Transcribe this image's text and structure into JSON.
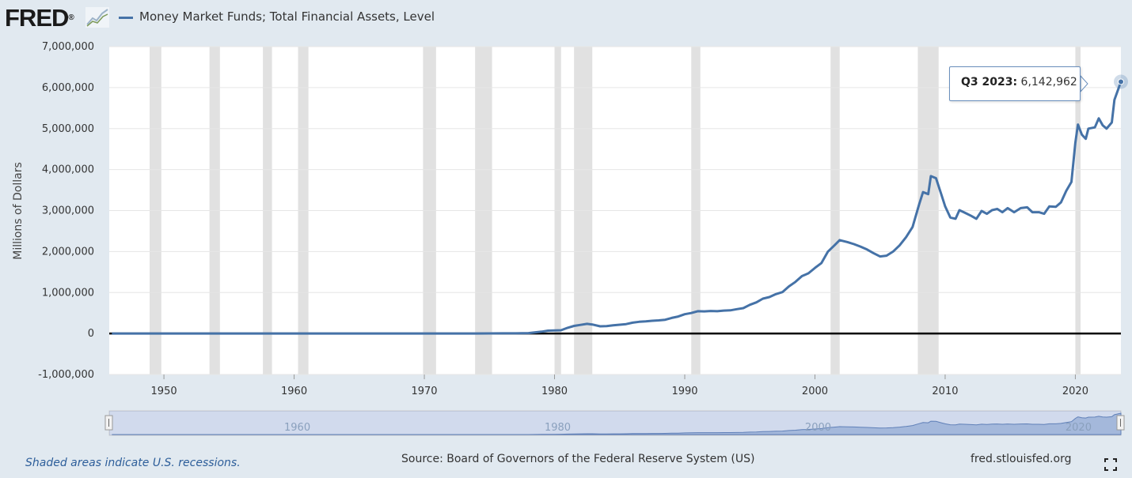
{
  "header": {
    "logo_text": "FRED",
    "logo_registered": "®",
    "legend_label": "Money Market Funds; Total Financial Assets, Level"
  },
  "colors": {
    "page_bg": "#e1e9f0",
    "plot_bg": "#ffffff",
    "series": "#4572a7",
    "recession": "#e1e1e1",
    "zero_line": "#000000",
    "navigator_fill": "#b8c9e3",
    "navigator_line": "#5d7fb3",
    "footer_note": "#2d5e9a"
  },
  "tooltip": {
    "label": "Q3 2023:",
    "value": "6,142,962"
  },
  "navigator": {
    "tick_labels": [
      "1960",
      "1980",
      "2000",
      "2020"
    ]
  },
  "footer": {
    "note": "Shaded areas indicate U.S. recessions.",
    "source": "Source: Board of Governors of the Federal Reserve System (US)",
    "site": "fred.stlouisfed.org"
  },
  "icons": {
    "logo_mark": "line-chart-icon",
    "fullscreen": "fullscreen-icon"
  },
  "chart_data": {
    "type": "line",
    "title": "",
    "xlabel": "",
    "ylabel": "Millions of Dollars",
    "xlim": [
      1945.8,
      2023.5
    ],
    "ylim": [
      -1000000,
      7000000
    ],
    "grid": "horizontal",
    "legend_position": "top-left",
    "x_ticks": [
      1950,
      1960,
      1970,
      1980,
      1990,
      2000,
      2010,
      2020
    ],
    "x_tick_labels": [
      "1950",
      "1960",
      "1970",
      "1980",
      "1990",
      "2000",
      "2010",
      "2020"
    ],
    "y_ticks": [
      -1000000,
      0,
      1000000,
      2000000,
      3000000,
      4000000,
      5000000,
      6000000,
      7000000
    ],
    "y_tick_labels": [
      "-1,000,000",
      "0",
      "1,000,000",
      "2,000,000",
      "3,000,000",
      "4,000,000",
      "5,000,000",
      "6,000,000",
      "7,000,000"
    ],
    "recessions": [
      [
        1948.9,
        1949.8
      ],
      [
        1953.5,
        1954.3
      ],
      [
        1957.6,
        1958.3
      ],
      [
        1960.3,
        1961.1
      ],
      [
        1969.9,
        1970.9
      ],
      [
        1973.9,
        1975.2
      ],
      [
        1980.0,
        1980.5
      ],
      [
        1981.5,
        1982.9
      ],
      [
        1990.5,
        1991.2
      ],
      [
        2001.2,
        2001.9
      ],
      [
        2007.9,
        2009.5
      ],
      [
        2020.0,
        2020.4
      ]
    ],
    "series": [
      {
        "name": "Money Market Funds; Total Financial Assets, Level",
        "points": [
          [
            1946.0,
            0
          ],
          [
            1974.0,
            1000
          ],
          [
            1975.0,
            3000
          ],
          [
            1976.0,
            4000
          ],
          [
            1977.0,
            4000
          ],
          [
            1978.0,
            10000
          ],
          [
            1979.0,
            45000
          ],
          [
            1979.5,
            70000
          ],
          [
            1980.0,
            76000
          ],
          [
            1980.5,
            80000
          ],
          [
            1981.0,
            140000
          ],
          [
            1981.5,
            185000
          ],
          [
            1982.0,
            210000
          ],
          [
            1982.5,
            235000
          ],
          [
            1982.9,
            220000
          ],
          [
            1983.5,
            175000
          ],
          [
            1984.0,
            180000
          ],
          [
            1984.5,
            200000
          ],
          [
            1985.0,
            215000
          ],
          [
            1985.5,
            230000
          ],
          [
            1986.0,
            265000
          ],
          [
            1986.5,
            285000
          ],
          [
            1987.0,
            295000
          ],
          [
            1987.5,
            310000
          ],
          [
            1988.0,
            320000
          ],
          [
            1988.5,
            335000
          ],
          [
            1989.0,
            380000
          ],
          [
            1989.5,
            415000
          ],
          [
            1990.0,
            470000
          ],
          [
            1990.5,
            500000
          ],
          [
            1991.0,
            545000
          ],
          [
            1991.5,
            540000
          ],
          [
            1992.0,
            550000
          ],
          [
            1992.5,
            545000
          ],
          [
            1993.0,
            560000
          ],
          [
            1993.5,
            565000
          ],
          [
            1994.0,
            595000
          ],
          [
            1994.5,
            620000
          ],
          [
            1995.0,
            700000
          ],
          [
            1995.5,
            760000
          ],
          [
            1996.0,
            850000
          ],
          [
            1996.5,
            890000
          ],
          [
            1997.0,
            960000
          ],
          [
            1997.5,
            1010000
          ],
          [
            1998.0,
            1150000
          ],
          [
            1998.5,
            1260000
          ],
          [
            1999.0,
            1400000
          ],
          [
            1999.5,
            1470000
          ],
          [
            2000.0,
            1600000
          ],
          [
            2000.5,
            1720000
          ],
          [
            2001.0,
            2000000
          ],
          [
            2001.5,
            2150000
          ],
          [
            2001.9,
            2280000
          ],
          [
            2002.5,
            2230000
          ],
          [
            2003.0,
            2180000
          ],
          [
            2003.5,
            2120000
          ],
          [
            2004.0,
            2050000
          ],
          [
            2004.5,
            1960000
          ],
          [
            2005.0,
            1880000
          ],
          [
            2005.5,
            1900000
          ],
          [
            2006.0,
            2000000
          ],
          [
            2006.5,
            2150000
          ],
          [
            2007.0,
            2350000
          ],
          [
            2007.5,
            2600000
          ],
          [
            2008.0,
            3150000
          ],
          [
            2008.3,
            3450000
          ],
          [
            2008.7,
            3400000
          ],
          [
            2008.9,
            3840000
          ],
          [
            2009.3,
            3790000
          ],
          [
            2009.7,
            3400000
          ],
          [
            2010.0,
            3100000
          ],
          [
            2010.4,
            2830000
          ],
          [
            2010.8,
            2800000
          ],
          [
            2011.1,
            3010000
          ],
          [
            2011.5,
            2950000
          ],
          [
            2012.0,
            2870000
          ],
          [
            2012.4,
            2800000
          ],
          [
            2012.8,
            2990000
          ],
          [
            2013.2,
            2920000
          ],
          [
            2013.6,
            3010000
          ],
          [
            2014.0,
            3040000
          ],
          [
            2014.4,
            2960000
          ],
          [
            2014.8,
            3060000
          ],
          [
            2015.3,
            2960000
          ],
          [
            2015.8,
            3060000
          ],
          [
            2016.3,
            3080000
          ],
          [
            2016.7,
            2960000
          ],
          [
            2017.2,
            2960000
          ],
          [
            2017.6,
            2920000
          ],
          [
            2018.0,
            3100000
          ],
          [
            2018.5,
            3090000
          ],
          [
            2018.9,
            3200000
          ],
          [
            2019.3,
            3480000
          ],
          [
            2019.7,
            3700000
          ],
          [
            2020.0,
            4650000
          ],
          [
            2020.2,
            5100000
          ],
          [
            2020.5,
            4850000
          ],
          [
            2020.8,
            4750000
          ],
          [
            2021.0,
            5000000
          ],
          [
            2021.5,
            5030000
          ],
          [
            2021.8,
            5250000
          ],
          [
            2022.1,
            5080000
          ],
          [
            2022.4,
            5000000
          ],
          [
            2022.8,
            5150000
          ],
          [
            2023.0,
            5700000
          ],
          [
            2023.5,
            6142962
          ]
        ]
      }
    ]
  }
}
